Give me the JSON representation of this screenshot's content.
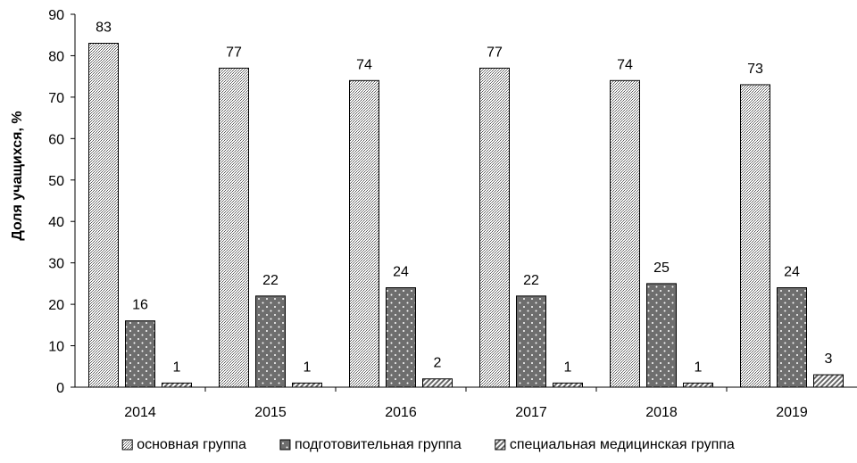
{
  "chart_data": {
    "type": "bar",
    "ylabel": "Доля учащихся, %",
    "xlabel": "",
    "ylim": [
      0,
      90
    ],
    "yticks": [
      0,
      10,
      20,
      30,
      40,
      50,
      60,
      70,
      80,
      90
    ],
    "categories": [
      "2014",
      "2015",
      "2016",
      "2017",
      "2018",
      "2019"
    ],
    "series": [
      {
        "name": "основная группа",
        "values": [
          83,
          77,
          74,
          77,
          74,
          73
        ],
        "pattern": "crosshatch",
        "color": "#b8b8b8"
      },
      {
        "name": "подготовительная группа",
        "values": [
          16,
          22,
          24,
          22,
          25,
          24
        ],
        "pattern": "dots",
        "color": "#6e6e6e"
      },
      {
        "name": "специальная медицинская группа",
        "values": [
          1,
          1,
          2,
          1,
          1,
          3
        ],
        "pattern": "diagonal",
        "color": "#7a7a7a"
      }
    ],
    "legend_position": "bottom",
    "grid": false,
    "data_labels": true
  }
}
